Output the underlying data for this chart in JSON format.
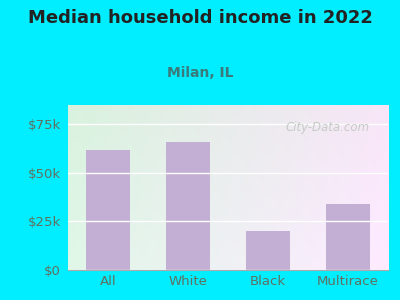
{
  "title": "Median household income in 2022",
  "subtitle": "Milan, IL",
  "categories": [
    "All",
    "White",
    "Black",
    "Multirace"
  ],
  "values": [
    62000,
    66000,
    20000,
    34000
  ],
  "bar_color": "#c4afd4",
  "title_fontsize": 13,
  "subtitle_fontsize": 10,
  "tick_label_fontsize": 9.5,
  "ylabel_ticks": [
    0,
    25000,
    50000,
    75000
  ],
  "ylim": [
    0,
    85000
  ],
  "bg_outer": "#00eeff",
  "watermark": "City-Data.com",
  "tick_color": "#607060",
  "title_color": "#222222",
  "subtitle_color": "#3a7a7a"
}
